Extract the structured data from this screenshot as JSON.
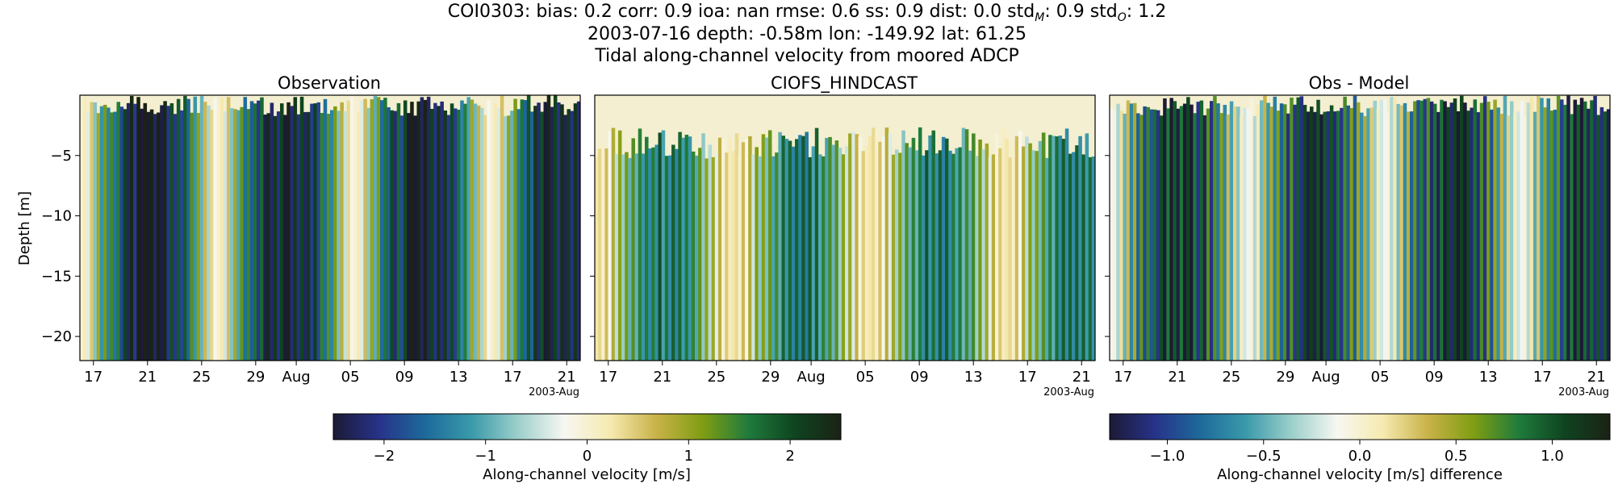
{
  "header": {
    "line1_prefix": "COI0303: bias: 0.2  corr: 0.9  ioa: nan  rmse: 0.6  ss: 0.9  dist: 0.0  std",
    "line1_sub_m": "M",
    "line1_mid": ": 0.9  std",
    "line1_sub_o": "O",
    "line1_suffix": ": 1.2",
    "line2": "2003-07-16 depth: -0.58m lon: -149.92 lat: 61.25",
    "line3": "Tidal along-channel velocity from moored ADCP"
  },
  "colors": {
    "cmap": [
      "#1c1a35",
      "#27338a",
      "#1d6a9b",
      "#3a9aaa",
      "#9ccfcb",
      "#f7f7f2",
      "#f6eab0",
      "#c9b248",
      "#7f9e13",
      "#1f7b3c",
      "#0f4420",
      "#1b2215"
    ]
  },
  "chart_data": [
    {
      "type": "heatmap",
      "title": "Observation",
      "ylabel": "Depth [m]",
      "ylim": [
        -22,
        0
      ],
      "yticks": [
        -5,
        -10,
        -15,
        -20
      ],
      "ytick_labels": [
        "−5",
        "−10",
        "−15",
        "−20"
      ],
      "xlim": [
        "2003-07-16",
        "2003-08-22"
      ],
      "xtick_labels": [
        "17",
        "21",
        "25",
        "29",
        "Aug",
        "05",
        "09",
        "13",
        "17",
        "21"
      ],
      "x_offset_label": "2003-Aug",
      "colorbar": {
        "label": "Along-channel velocity [m/s]",
        "range": [
          -2.5,
          2.5
        ],
        "ticks": [
          -2,
          -1,
          0,
          1,
          2
        ],
        "tick_labels": [
          "−2",
          "−1",
          "0",
          "1",
          "2"
        ]
      }
    },
    {
      "type": "heatmap",
      "title": "CIOFS_HINDCAST",
      "ylim": [
        -22,
        0
      ],
      "xlim": [
        "2003-07-16",
        "2003-08-22"
      ],
      "xtick_labels": [
        "17",
        "21",
        "25",
        "29",
        "Aug",
        "05",
        "09",
        "13",
        "17",
        "21"
      ],
      "x_offset_label": "2003-Aug"
    },
    {
      "type": "heatmap",
      "title": "Obs - Model",
      "ylim": [
        -22,
        0
      ],
      "xlim": [
        "2003-07-16",
        "2003-08-22"
      ],
      "xtick_labels": [
        "17",
        "21",
        "25",
        "29",
        "Aug",
        "05",
        "09",
        "13",
        "17",
        "21"
      ],
      "x_offset_label": "2003-Aug",
      "colorbar": {
        "label": "Along-channel velocity [m/s] difference",
        "range": [
          -1.3,
          1.3
        ],
        "ticks": [
          -1.0,
          -0.5,
          0.0,
          0.5,
          1.0
        ],
        "tick_labels": [
          "−1.0",
          "−0.5",
          "0.0",
          "0.5",
          "1.0"
        ]
      }
    }
  ]
}
